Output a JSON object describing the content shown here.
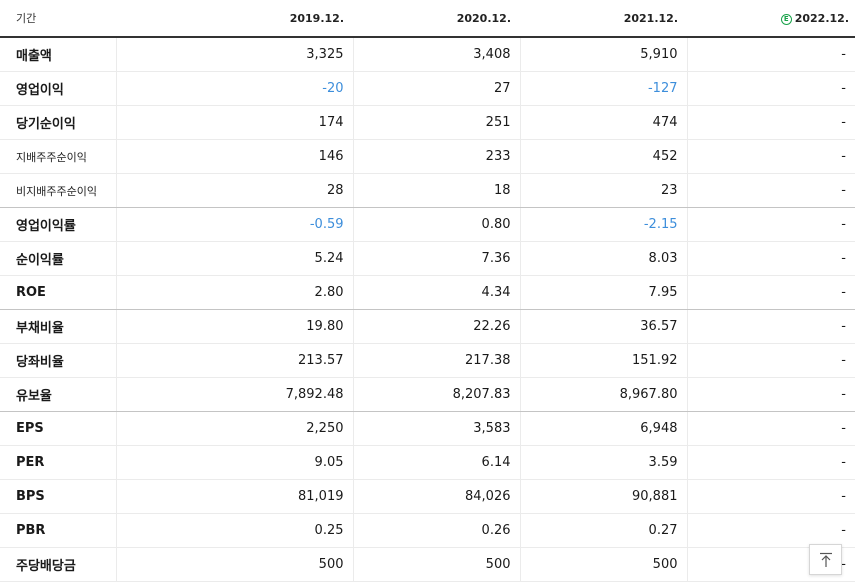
{
  "header": {
    "label": "기간",
    "periods": [
      "2019.12.",
      "2020.12.",
      "2021.12.",
      "2022.12."
    ],
    "estimate_badge": "E"
  },
  "rows": [
    {
      "label": "매출액",
      "values": [
        "3,325",
        "3,408",
        "5,910",
        "-"
      ]
    },
    {
      "label": "영업이익",
      "values": [
        "-20",
        "27",
        "-127",
        "-"
      ]
    },
    {
      "label": "당기순이익",
      "values": [
        "174",
        "251",
        "474",
        "-"
      ]
    },
    {
      "label": "지배주주순이익",
      "values": [
        "146",
        "233",
        "452",
        "-"
      ]
    },
    {
      "label": "비지배주주순이익",
      "values": [
        "28",
        "18",
        "23",
        "-"
      ]
    },
    {
      "label": "영업이익률",
      "values": [
        "-0.59",
        "0.80",
        "-2.15",
        "-"
      ]
    },
    {
      "label": "순이익률",
      "values": [
        "5.24",
        "7.36",
        "8.03",
        "-"
      ]
    },
    {
      "label": "ROE",
      "values": [
        "2.80",
        "4.34",
        "7.95",
        "-"
      ]
    },
    {
      "label": "부채비율",
      "values": [
        "19.80",
        "22.26",
        "36.57",
        "-"
      ]
    },
    {
      "label": "당좌비율",
      "values": [
        "213.57",
        "217.38",
        "151.92",
        "-"
      ]
    },
    {
      "label": "유보율",
      "values": [
        "7,892.48",
        "8,207.83",
        "8,967.80",
        "-"
      ]
    },
    {
      "label": "EPS",
      "values": [
        "2,250",
        "3,583",
        "6,948",
        "-"
      ]
    },
    {
      "label": "PER",
      "values": [
        "9.05",
        "6.14",
        "3.59",
        "-"
      ]
    },
    {
      "label": "BPS",
      "values": [
        "81,019",
        "84,026",
        "90,881",
        "-"
      ]
    },
    {
      "label": "PBR",
      "values": [
        "0.25",
        "0.26",
        "0.27",
        "-"
      ]
    },
    {
      "label": "주당배당금",
      "values": [
        "500",
        "500",
        "500",
        "-"
      ]
    }
  ],
  "colors": {
    "negative_value": "#3d8edb",
    "estimate_badge": "#19a34a",
    "header_rule": "#333333"
  },
  "icons": {
    "estimate": "estimate-e-icon",
    "scroll_top": "arrow-up-to-top-icon"
  }
}
